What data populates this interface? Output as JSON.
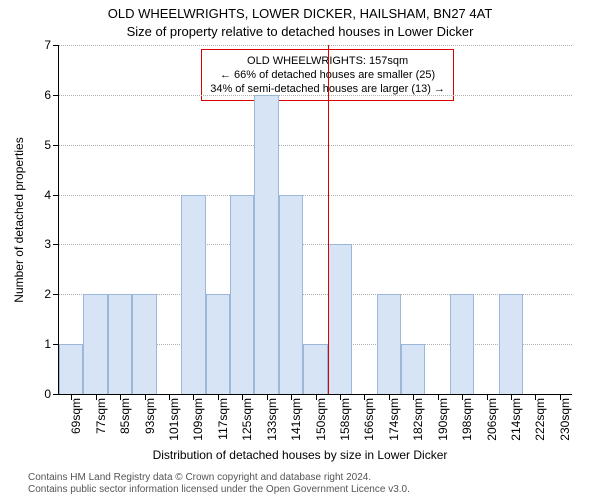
{
  "title": "OLD WHEELWRIGHTS, LOWER DICKER, HAILSHAM, BN27 4AT",
  "subtitle": "Size of property relative to detached houses in Lower Dicker",
  "chart": {
    "type": "histogram",
    "ylabel": "Number of detached properties",
    "xlabel": "Distribution of detached houses by size in Lower Dicker",
    "ylim": [
      0,
      7
    ],
    "ytick_step": 1,
    "categories": [
      "69sqm",
      "77sqm",
      "85sqm",
      "93sqm",
      "101sqm",
      "109sqm",
      "117sqm",
      "125sqm",
      "133sqm",
      "141sqm",
      "150sqm",
      "158sqm",
      "166sqm",
      "174sqm",
      "182sqm",
      "190sqm",
      "198sqm",
      "206sqm",
      "214sqm",
      "222sqm",
      "230sqm"
    ],
    "values": [
      1,
      2,
      2,
      2,
      0,
      4,
      2,
      4,
      6,
      4,
      1,
      3,
      0,
      2,
      1,
      0,
      2,
      0,
      2,
      0,
      0
    ],
    "bar_fill": "#d6e4f5",
    "bar_stroke": "#9cb8d9",
    "background_color": "#ffffff",
    "grid_color": "#b0b0b0",
    "axis_color": "#000000",
    "label_fontsize": 12,
    "tick_fontsize": 12,
    "reference_line": {
      "index_after": 10,
      "color": "#dd0000"
    },
    "info_box": {
      "line1": "OLD WHEELWRIGHTS: 157sqm",
      "line2": "← 66% of detached houses are smaller (25)",
      "line3": "34% of semi-detached houses are larger (13) →",
      "border_color": "#dd0000",
      "fontsize": 11
    }
  },
  "footer": {
    "line1": "Contains HM Land Registry data © Crown copyright and database right 2024.",
    "line2": "Contains public sector information licensed under the Open Government Licence v3.0."
  }
}
